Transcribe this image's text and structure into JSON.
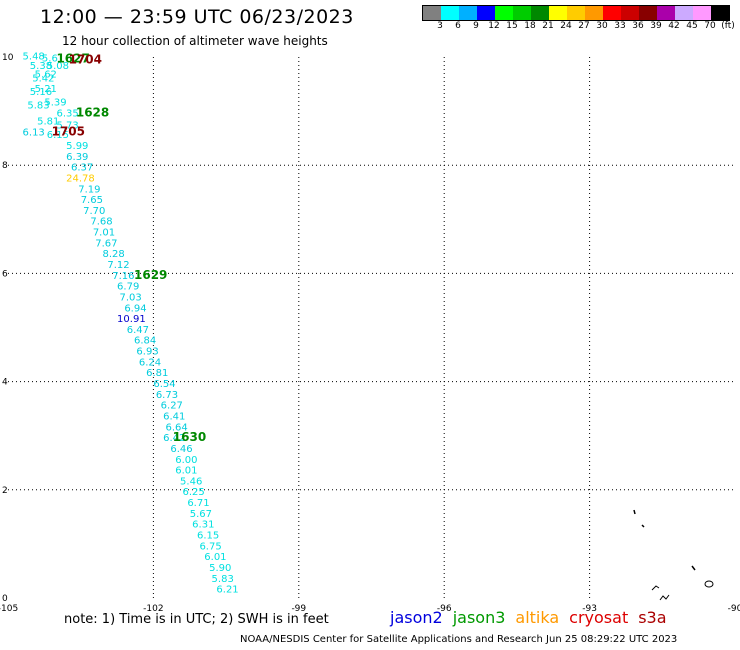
{
  "header": {
    "title": "12:00 — 23:59 UTC 06/23/2023",
    "subtitle": "12 hour collection of altimeter wave heights"
  },
  "colorbar": {
    "colors": [
      "#808080",
      "#00ffff",
      "#00b0ff",
      "#0000ff",
      "#00ff00",
      "#00cc00",
      "#008800",
      "#ffff00",
      "#ffcc00",
      "#ff9900",
      "#ff0000",
      "#cc0000",
      "#880000",
      "#aa00aa",
      "#ccaaff",
      "#ff99ff",
      "#000000"
    ],
    "labels": [
      "3",
      "6",
      "9",
      "12",
      "15",
      "18",
      "21",
      "24",
      "27",
      "30",
      "33",
      "36",
      "39",
      "42",
      "45",
      "70",
      "(ft)"
    ]
  },
  "axes": {
    "x_ticks": [
      "-105",
      "-102",
      "-99",
      "-96",
      "-93",
      "-90"
    ],
    "y_ticks": [
      "0",
      "2",
      "4",
      "6",
      "8",
      "10"
    ],
    "xlim": [
      -105,
      -90
    ],
    "ylim": [
      0,
      10
    ]
  },
  "track_values": [
    {
      "text": "5.48",
      "lon": -104.7,
      "lat": 9.95,
      "color": "#00e0e0"
    },
    {
      "text": "5.6",
      "lon": -104.3,
      "lat": 9.92,
      "color": "#00e0e0"
    },
    {
      "text": "5.08",
      "lon": -104.2,
      "lat": 9.78,
      "color": "#00e0e0"
    },
    {
      "text": "5.38",
      "lon": -104.55,
      "lat": 9.78,
      "color": "#00e0e0"
    },
    {
      "text": "5.62",
      "lon": -104.45,
      "lat": 9.62,
      "color": "#00e0e0"
    },
    {
      "text": "5.42",
      "lon": -104.5,
      "lat": 9.55,
      "color": "#00e0e0"
    },
    {
      "text": "5.21",
      "lon": -104.45,
      "lat": 9.35,
      "color": "#00e0e0"
    },
    {
      "text": "5.16",
      "lon": -104.55,
      "lat": 9.3,
      "color": "#00e0e0"
    },
    {
      "text": "5.39",
      "lon": -104.25,
      "lat": 9.1,
      "color": "#00e0e0"
    },
    {
      "text": "5.83",
      "lon": -104.6,
      "lat": 9.05,
      "color": "#00e0e0"
    },
    {
      "text": "6.35",
      "lon": -104.0,
      "lat": 8.9,
      "color": "#00e0e0"
    },
    {
      "text": "5.81",
      "lon": -104.4,
      "lat": 8.75,
      "color": "#00e0e0"
    },
    {
      "text": "5.73",
      "lon": -104.0,
      "lat": 8.68,
      "color": "#00e0e0"
    },
    {
      "text": "6.13",
      "lon": -104.7,
      "lat": 8.55,
      "color": "#00ccdd"
    },
    {
      "text": "6.15",
      "lon": -104.2,
      "lat": 8.5,
      "color": "#00e0e0"
    },
    {
      "text": "5.99",
      "lon": -103.8,
      "lat": 8.3,
      "color": "#00e0e0"
    },
    {
      "text": "6.39",
      "lon": -103.8,
      "lat": 8.1,
      "color": "#00ccdd"
    },
    {
      "text": "6.37",
      "lon": -103.7,
      "lat": 7.9,
      "color": "#00ccdd"
    },
    {
      "text": "24.78",
      "lon": -103.8,
      "lat": 7.7,
      "color": "#ffcc00"
    },
    {
      "text": "7.19",
      "lon": -103.55,
      "lat": 7.5,
      "color": "#00ccdd"
    },
    {
      "text": "7.65",
      "lon": -103.5,
      "lat": 7.3,
      "color": "#00ccdd"
    },
    {
      "text": "7.70",
      "lon": -103.45,
      "lat": 7.1,
      "color": "#00ccdd"
    },
    {
      "text": "7.68",
      "lon": -103.3,
      "lat": 6.9,
      "color": "#00ccdd"
    },
    {
      "text": "7.01",
      "lon": -103.25,
      "lat": 6.7,
      "color": "#00ccdd"
    },
    {
      "text": "7.67",
      "lon": -103.2,
      "lat": 6.5,
      "color": "#00ccdd"
    },
    {
      "text": "8.28",
      "lon": -103.05,
      "lat": 6.3,
      "color": "#00ccdd"
    },
    {
      "text": "7.12",
      "lon": -102.95,
      "lat": 6.1,
      "color": "#00ccdd"
    },
    {
      "text": "7.16",
      "lon": -102.85,
      "lat": 5.9,
      "color": "#00ccdd"
    },
    {
      "text": "6.79",
      "lon": -102.75,
      "lat": 5.7,
      "color": "#00ccdd"
    },
    {
      "text": "7.03",
      "lon": -102.7,
      "lat": 5.5,
      "color": "#00ccdd"
    },
    {
      "text": "6.94",
      "lon": -102.6,
      "lat": 5.3,
      "color": "#00ccdd"
    },
    {
      "text": "10.91",
      "lon": -102.75,
      "lat": 5.1,
      "color": "#0000cc"
    },
    {
      "text": "6.47",
      "lon": -102.55,
      "lat": 4.9,
      "color": "#00ccdd"
    },
    {
      "text": "6.84",
      "lon": -102.4,
      "lat": 4.7,
      "color": "#00ccdd"
    },
    {
      "text": "6.93",
      "lon": -102.35,
      "lat": 4.5,
      "color": "#00ccdd"
    },
    {
      "text": "6.24",
      "lon": -102.3,
      "lat": 4.3,
      "color": "#00ccdd"
    },
    {
      "text": "6.81",
      "lon": -102.15,
      "lat": 4.1,
      "color": "#00ccdd"
    },
    {
      "text": "6.54",
      "lon": -102.0,
      "lat": 3.9,
      "color": "#00ccdd"
    },
    {
      "text": "6.73",
      "lon": -101.95,
      "lat": 3.7,
      "color": "#00ccdd"
    },
    {
      "text": "6.27",
      "lon": -101.85,
      "lat": 3.5,
      "color": "#00ccdd"
    },
    {
      "text": "6.41",
      "lon": -101.8,
      "lat": 3.3,
      "color": "#00ccdd"
    },
    {
      "text": "6.64",
      "lon": -101.75,
      "lat": 3.1,
      "color": "#00ccdd"
    },
    {
      "text": "6.42",
      "lon": -101.8,
      "lat": 2.9,
      "color": "#00ccdd"
    },
    {
      "text": "6.46",
      "lon": -101.65,
      "lat": 2.7,
      "color": "#00ccdd"
    },
    {
      "text": "6.00",
      "lon": -101.55,
      "lat": 2.5,
      "color": "#00e0e0"
    },
    {
      "text": "6.01",
      "lon": -101.55,
      "lat": 2.3,
      "color": "#00e0e0"
    },
    {
      "text": "5.46",
      "lon": -101.45,
      "lat": 2.1,
      "color": "#00e0e0"
    },
    {
      "text": "6.25",
      "lon": -101.4,
      "lat": 1.9,
      "color": "#00e0e0"
    },
    {
      "text": "6.71",
      "lon": -101.3,
      "lat": 1.7,
      "color": "#00e0e0"
    },
    {
      "text": "5.67",
      "lon": -101.25,
      "lat": 1.5,
      "color": "#00e0e0"
    },
    {
      "text": "6.31",
      "lon": -101.2,
      "lat": 1.3,
      "color": "#00e0e0"
    },
    {
      "text": "6.15",
      "lon": -101.1,
      "lat": 1.1,
      "color": "#00e0e0"
    },
    {
      "text": "6.75",
      "lon": -101.05,
      "lat": 0.9,
      "color": "#00e0e0"
    },
    {
      "text": "6.01",
      "lon": -100.95,
      "lat": 0.7,
      "color": "#00e0e0"
    },
    {
      "text": "5.90",
      "lon": -100.85,
      "lat": 0.5,
      "color": "#00e0e0"
    },
    {
      "text": "5.83",
      "lon": -100.8,
      "lat": 0.3,
      "color": "#00e0e0"
    },
    {
      "text": "6.21",
      "lon": -100.7,
      "lat": 0.1,
      "color": "#00e0e0"
    }
  ],
  "time_labels": [
    {
      "text": "1627",
      "lon": -104.0,
      "lat": 9.9,
      "color": "#008800"
    },
    {
      "text": "1704",
      "lon": -103.75,
      "lat": 9.88,
      "color": "#880000"
    },
    {
      "text": "1628",
      "lon": -103.6,
      "lat": 8.9,
      "color": "#008800"
    },
    {
      "text": "1705",
      "lon": -104.1,
      "lat": 8.55,
      "color": "#880000"
    },
    {
      "text": "1629",
      "lon": -102.4,
      "lat": 5.9,
      "color": "#008800"
    },
    {
      "text": "1630",
      "lon": -101.6,
      "lat": 2.9,
      "color": "#008800"
    }
  ],
  "footer": {
    "note": "note:  1) Time is in UTC;  2) SWH is in feet",
    "legend": [
      {
        "name": "jason2",
        "color": "#0000dd"
      },
      {
        "name": "jason3",
        "color": "#009900"
      },
      {
        "name": "altika",
        "color": "#ff9900"
      },
      {
        "name": "cryosat",
        "color": "#dd0000"
      },
      {
        "name": "s3a",
        "color": "#aa0000"
      }
    ],
    "credit": "NOAA/NESDIS Center for Satellite Applications and Research    Jun 25 08:29:22 UTC 2023"
  }
}
